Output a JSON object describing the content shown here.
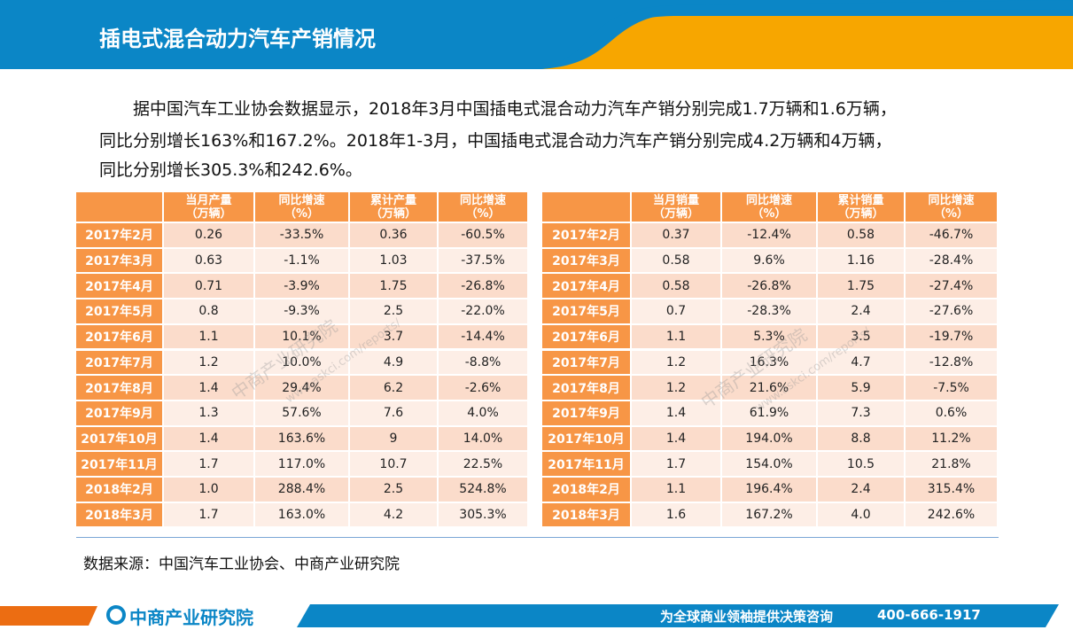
{
  "header": {
    "title": "插电式混合动力汽车产销情况"
  },
  "paragraph": {
    "lines": [
      "据中国汽车工业协会数据显示，2018年3月中国插电式混合动力汽车产销分别完成1.7万辆和1.6万辆，",
      "同比分别增长163%和167.2%。2018年1-3月，中国插电式混合动力汽车产销分别完成4.2万辆和4万辆，",
      "同比分别增长305.3%和242.6%。"
    ]
  },
  "tables": [
    {
      "headers": [
        [
          "当月产量",
          "（万辆）"
        ],
        [
          "同比增速",
          "（%）"
        ],
        [
          "累计产量",
          "（万辆）"
        ],
        [
          "同比增速",
          "（%）"
        ]
      ],
      "rows": [
        [
          "2017年2月",
          "0.26",
          "-33.5%",
          "0.36",
          "-60.5%"
        ],
        [
          "2017年3月",
          "0.63",
          "-1.1%",
          "1.03",
          "-37.5%"
        ],
        [
          "2017年4月",
          "0.71",
          "-3.9%",
          "1.75",
          "-26.8%"
        ],
        [
          "2017年5月",
          "0.8",
          "-9.3%",
          "2.5",
          "-22.0%"
        ],
        [
          "2017年6月",
          "1.1",
          "10.1%",
          "3.7",
          "-14.4%"
        ],
        [
          "2017年7月",
          "1.2",
          "10.0%",
          "4.9",
          "-8.8%"
        ],
        [
          "2017年8月",
          "1.4",
          "29.4%",
          "6.2",
          "-2.6%"
        ],
        [
          "2017年9月",
          "1.3",
          "57.6%",
          "7.6",
          "4.0%"
        ],
        [
          "2017年10月",
          "1.4",
          "163.6%",
          "9",
          "14.0%"
        ],
        [
          "2017年11月",
          "1.7",
          "117.0%",
          "10.7",
          "22.5%"
        ],
        [
          "2018年2月",
          "1.0",
          "288.4%",
          "2.5",
          "524.8%"
        ],
        [
          "2018年3月",
          "1.7",
          "163.0%",
          "4.2",
          "305.3%"
        ]
      ]
    },
    {
      "headers": [
        [
          "当月销量",
          "（万辆）"
        ],
        [
          "同比增速",
          "（%）"
        ],
        [
          "累计销量",
          "（万辆）"
        ],
        [
          "同比增速",
          "（%）"
        ]
      ],
      "rows": [
        [
          "2017年2月",
          "0.37",
          "-12.4%",
          "0.58",
          "-46.7%"
        ],
        [
          "2017年3月",
          "0.58",
          "9.6%",
          "1.16",
          "-28.4%"
        ],
        [
          "2017年4月",
          "0.58",
          "-26.8%",
          "1.75",
          "-27.4%"
        ],
        [
          "2017年5月",
          "0.7",
          "-28.3%",
          "2.4",
          "-27.6%"
        ],
        [
          "2017年6月",
          "1.1",
          "5.3%",
          "3.5",
          "-19.7%"
        ],
        [
          "2017年7月",
          "1.2",
          "16.3%",
          "4.7",
          "-12.8%"
        ],
        [
          "2017年8月",
          "1.2",
          "21.6%",
          "5.9",
          "-7.5%"
        ],
        [
          "2017年9月",
          "1.4",
          "61.9%",
          "7.3",
          "0.6%"
        ],
        [
          "2017年10月",
          "1.4",
          "194.0%",
          "8.8",
          "11.2%"
        ],
        [
          "2017年11月",
          "1.7",
          "154.0%",
          "10.5",
          "21.8%"
        ],
        [
          "2018年2月",
          "1.1",
          "196.4%",
          "2.4",
          "315.4%"
        ],
        [
          "2018年3月",
          "1.6",
          "167.2%",
          "4.0",
          "242.6%"
        ]
      ]
    }
  ],
  "watermark": {
    "name": "中商产业研究院",
    "url": "www.askci.com/reports/"
  },
  "source": "数据来源：中国汽车工业协会、中商产业研究院",
  "footer": {
    "logo": "中商产业研究院",
    "slogan": "为全球商业领袖提供决策咨询",
    "phone": "400-666-1917"
  }
}
